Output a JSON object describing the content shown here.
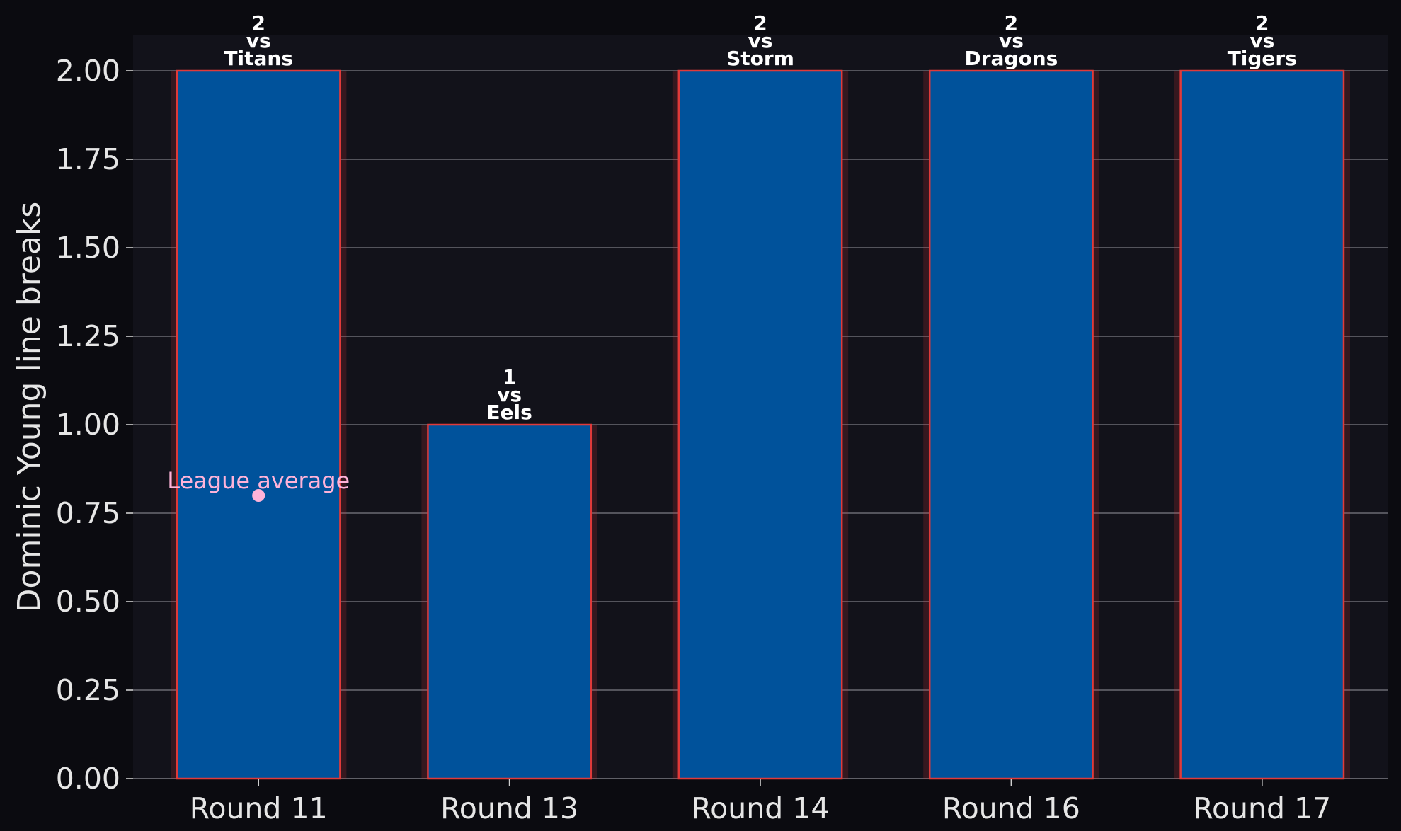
{
  "chart_data": {
    "type": "bar",
    "categories": [
      "Round 11",
      "Round 13",
      "Round 14",
      "Round 16",
      "Round 17"
    ],
    "values": [
      2,
      1,
      2,
      2,
      2
    ],
    "bar_labels": [
      [
        "2",
        "vs",
        "Titans"
      ],
      [
        "1",
        "vs",
        "Eels"
      ],
      [
        "2",
        "vs",
        "Storm"
      ],
      [
        "2",
        "vs",
        "Dragons"
      ],
      [
        "2",
        "vs",
        "Tigers"
      ]
    ],
    "ylabel": "Dominic Young line breaks",
    "ylim": [
      0,
      2.1
    ],
    "yticks": [
      "0.00",
      "0.25",
      "0.50",
      "0.75",
      "1.00",
      "1.25",
      "1.50",
      "1.75",
      "2.00"
    ],
    "grid": true,
    "reference_point": {
      "label": "League average",
      "category": "Round 11",
      "value": 0.8
    },
    "colors": {
      "bar_fill": "#00529b",
      "bar_edge": "#e03a3a",
      "plot_background": "#12121a",
      "figure_background": "#0b0b10",
      "grid": "#6b6b73",
      "reference": "#ffb3d9"
    }
  }
}
